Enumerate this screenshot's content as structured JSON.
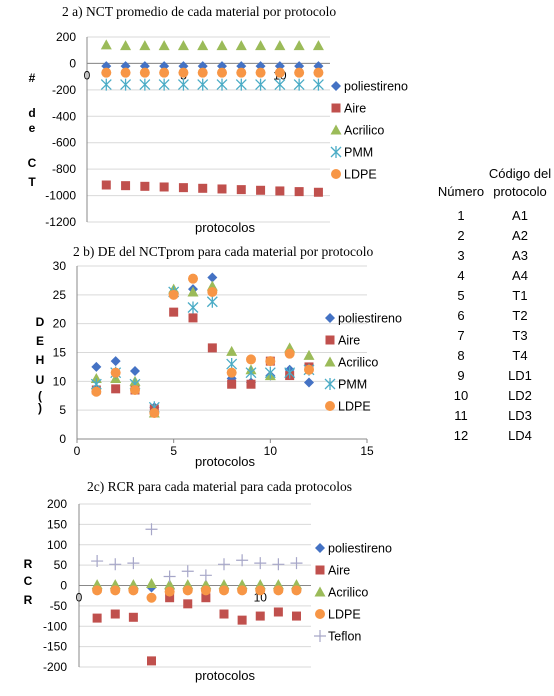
{
  "charts_meta": {
    "colors": {
      "poliestireno": "#4472C4",
      "Aire": "#C0504D",
      "Acrilico": "#9BBB59",
      "PMM": "#4BACC6",
      "LDPE": "#F79646",
      "Teflon": "#A6A6C8"
    }
  },
  "chart_data": [
    {
      "type": "scatter",
      "title": "2 a) NCT promedio de cada material por protocolo",
      "xlabel": "protocolos",
      "ylabel": "# de CT",
      "ylabel_chars": [
        "#",
        "d",
        "e",
        "C",
        "T"
      ],
      "xlim": [
        0,
        12.6
      ],
      "ylim": [
        -1200,
        200
      ],
      "xticks": [
        0,
        5,
        10
      ],
      "yticks": [
        200,
        0,
        -200,
        -400,
        -600,
        -800,
        -1000,
        -1200
      ],
      "legend": "right",
      "x": [
        1,
        2,
        3,
        4,
        5,
        6,
        7,
        8,
        9,
        10,
        11,
        12
      ],
      "series": [
        {
          "name": "poliestireno",
          "marker": "diamond",
          "values": [
            -20,
            -20,
            -20,
            -20,
            -20,
            -20,
            -20,
            -20,
            -20,
            -20,
            -20,
            -20
          ]
        },
        {
          "name": "Aire",
          "marker": "square",
          "values": [
            -920,
            -925,
            -930,
            -935,
            -940,
            -945,
            -950,
            -955,
            -960,
            -965,
            -970,
            -975
          ]
        },
        {
          "name": "Acrilico",
          "marker": "triangle",
          "values": [
            140,
            135,
            135,
            135,
            135,
            135,
            135,
            135,
            135,
            135,
            135,
            135
          ]
        },
        {
          "name": "PMM",
          "marker": "star",
          "values": [
            -160,
            -160,
            -160,
            -160,
            -160,
            -160,
            -160,
            -160,
            -160,
            -160,
            -160,
            -160
          ]
        },
        {
          "name": "LDPE",
          "marker": "circle",
          "values": [
            -70,
            -70,
            -70,
            -70,
            -70,
            -70,
            -70,
            -70,
            -70,
            -70,
            -70,
            -70
          ]
        }
      ]
    },
    {
      "type": "scatter",
      "title": "2 b) DE del NCTprom  para  cada material por protocolo",
      "xlabel": "protocolos",
      "ylabel": "DE HU ( )",
      "ylabel_chars": [
        "D",
        "E",
        "H",
        "U",
        "(",
        ")"
      ],
      "xlim": [
        0,
        15
      ],
      "ylim": [
        0,
        30
      ],
      "xticks": [
        0,
        5,
        10,
        15
      ],
      "yticks": [
        30,
        25,
        20,
        15,
        10,
        5,
        0
      ],
      "legend": "right",
      "x": [
        1,
        2,
        3,
        4,
        5,
        6,
        7,
        8,
        9,
        10,
        11,
        12
      ],
      "series": [
        {
          "name": "poliestireno",
          "marker": "diamond",
          "values": [
            12.5,
            13.5,
            11.8,
            5.5,
            25.5,
            26.0,
            28.0,
            10.5,
            9.8,
            11.0,
            12.0,
            9.8
          ]
        },
        {
          "name": "Aire",
          "marker": "square",
          "values": [
            8.5,
            8.7,
            8.5,
            5.2,
            22.0,
            21.0,
            15.8,
            9.5,
            9.5,
            13.5,
            11.0,
            12.5
          ]
        },
        {
          "name": "Acrilico",
          "marker": "triangle",
          "values": [
            10.5,
            10.5,
            10.0,
            4.5,
            26.0,
            25.5,
            26.5,
            15.2,
            12.0,
            11.0,
            15.8,
            14.5
          ]
        },
        {
          "name": "PMM",
          "marker": "star",
          "values": [
            9.5,
            11.5,
            9.5,
            5.5,
            25.5,
            22.8,
            23.8,
            13.0,
            11.5,
            11.5,
            11.5,
            12.0
          ]
        },
        {
          "name": "LDPE",
          "marker": "circle",
          "values": [
            8.2,
            11.5,
            8.5,
            4.5,
            25.0,
            27.8,
            25.5,
            11.5,
            13.8,
            13.5,
            14.8,
            12.0
          ]
        }
      ]
    },
    {
      "type": "scatter",
      "title": "2c) RCR para cada material para cada protocolos",
      "xlabel": "protocolos",
      "ylabel": "RCR",
      "ylabel_chars": [
        "R",
        "C",
        "R"
      ],
      "xlim": [
        0,
        12.8
      ],
      "ylim": [
        -200,
        200
      ],
      "xticks": [
        0,
        5,
        10
      ],
      "yticks": [
        200,
        150,
        100,
        50,
        0,
        -50,
        -100,
        -150,
        -200
      ],
      "legend": "right",
      "x": [
        1,
        2,
        3,
        4,
        5,
        6,
        7,
        8,
        9,
        10,
        11,
        12
      ],
      "series": [
        {
          "name": "poliestireno",
          "marker": "diamond",
          "values": [
            -10,
            -10,
            -10,
            -5,
            -10,
            -10,
            -10,
            -10,
            -10,
            -10,
            -10,
            -10
          ]
        },
        {
          "name": "Aire",
          "marker": "square",
          "values": [
            -80,
            -70,
            -78,
            -185,
            -30,
            -45,
            -30,
            -70,
            -85,
            -75,
            -65,
            -75
          ]
        },
        {
          "name": "Acrilico",
          "marker": "triangle",
          "values": [
            2,
            2,
            2,
            5,
            2,
            2,
            2,
            2,
            2,
            2,
            2,
            2
          ]
        },
        {
          "name": "LDPE",
          "marker": "circle",
          "values": [
            -12,
            -12,
            -12,
            -30,
            -15,
            -12,
            -12,
            -12,
            -12,
            -12,
            -12,
            -12
          ]
        },
        {
          "name": "Teflon",
          "marker": "plus",
          "values": [
            60,
            52,
            55,
            138,
            22,
            35,
            25,
            52,
            62,
            55,
            52,
            55
          ]
        }
      ]
    }
  ],
  "protocol_table": {
    "header_num": "Número",
    "header_code": "Código del protocolo",
    "rows": [
      {
        "num": "1",
        "code": "A1"
      },
      {
        "num": "2",
        "code": "A2"
      },
      {
        "num": "3",
        "code": "A3"
      },
      {
        "num": "4",
        "code": "A4"
      },
      {
        "num": "5",
        "code": "T1"
      },
      {
        "num": "6",
        "code": "T2"
      },
      {
        "num": "7",
        "code": "T3"
      },
      {
        "num": "8",
        "code": "T4"
      },
      {
        "num": "9",
        "code": "LD1"
      },
      {
        "num": "10",
        "code": "LD2"
      },
      {
        "num": "11",
        "code": "LD3"
      },
      {
        "num": "12",
        "code": "LD4"
      }
    ]
  }
}
